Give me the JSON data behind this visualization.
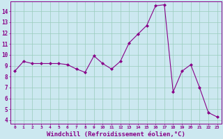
{
  "x": [
    0,
    1,
    2,
    3,
    4,
    5,
    6,
    7,
    8,
    9,
    10,
    11,
    12,
    13,
    14,
    15,
    16,
    17,
    18,
    19,
    20,
    21,
    22,
    23
  ],
  "y": [
    8.5,
    9.4,
    9.2,
    9.2,
    9.2,
    9.2,
    9.1,
    8.7,
    8.4,
    9.9,
    9.2,
    8.7,
    9.4,
    11.1,
    11.9,
    12.7,
    14.5,
    14.6,
    6.6,
    8.5,
    9.1,
    7.0,
    4.7,
    4.3
  ],
  "line_color": "#880088",
  "marker": "D",
  "marker_size": 2.0,
  "bg_color": "#cce8f0",
  "grid_color": "#99ccbb",
  "xlabel": "Windchill (Refroidissement éolien,°C)",
  "xlabel_fontsize": 6.5,
  "ylabel_values": [
    4,
    5,
    6,
    7,
    8,
    9,
    10,
    11,
    12,
    13,
    14
  ],
  "ylim": [
    3.7,
    14.9
  ],
  "xlim": [
    -0.5,
    23.5
  ],
  "xtick_labels": [
    "0",
    "1",
    "2",
    "3",
    "4",
    "5",
    "6",
    "7",
    "8",
    "9",
    "10",
    "11",
    "12",
    "13",
    "14",
    "15",
    "16",
    "17",
    "18",
    "19",
    "20",
    "21",
    "22",
    "23"
  ]
}
